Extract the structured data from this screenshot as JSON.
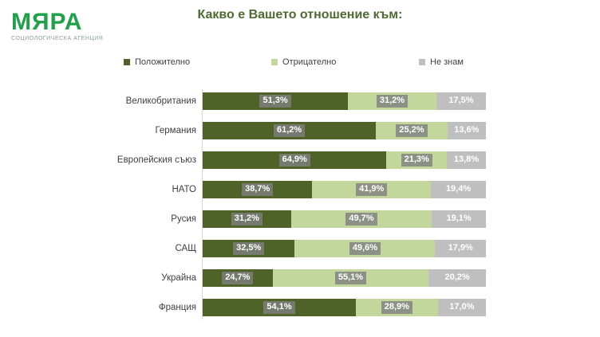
{
  "logo": {
    "name": "МЯРА",
    "subtitle": "СОЦИОЛОГИЧЕСКА АГЕНЦИЯ",
    "color": "#1fa24a"
  },
  "title": "Какво е Вашето отношение към:",
  "colors": {
    "positive": "#4f6228",
    "negative": "#c3d69b",
    "unknown": "#bfbfbf",
    "title": "#4e6b30",
    "label_box": "rgba(127,127,127,0.8)"
  },
  "legend": [
    {
      "label": "Положително",
      "color": "#4f6228"
    },
    {
      "label": "Отрицателно",
      "color": "#c3d69b"
    },
    {
      "label": "Не знам",
      "color": "#bfbfbf"
    }
  ],
  "chart_data": {
    "type": "bar",
    "orientation": "horizontal-stacked",
    "title": "Какво е Вашето отношение към:",
    "xlim": [
      0,
      100
    ],
    "grid": false,
    "legend_position": "top",
    "categories": [
      "Великобритания",
      "Германия",
      "Европейския съюз",
      "НАТО",
      "Русия",
      "САЩ",
      "Украйна",
      "Франция"
    ],
    "series": [
      {
        "name": "Положително",
        "color": "#4f6228",
        "values": [
          51.3,
          61.2,
          64.9,
          38.7,
          31.2,
          32.5,
          24.7,
          54.1
        ]
      },
      {
        "name": "Отрицателно",
        "color": "#c3d69b",
        "values": [
          31.2,
          25.2,
          21.3,
          41.9,
          49.7,
          49.6,
          55.1,
          28.9
        ]
      },
      {
        "name": "Не знам",
        "color": "#bfbfbf",
        "values": [
          17.5,
          13.6,
          13.8,
          19.4,
          19.1,
          17.9,
          20.2,
          17.0
        ]
      }
    ],
    "value_labels": [
      [
        "51,3%",
        "31,2%",
        "17,5%"
      ],
      [
        "61,2%",
        "25,2%",
        "13,6%"
      ],
      [
        "64,9%",
        "21,3%",
        "13,8%"
      ],
      [
        "38,7%",
        "41,9%",
        "19,4%"
      ],
      [
        "31,2%",
        "49,7%",
        "19,1%"
      ],
      [
        "32,5%",
        "49,6%",
        "17,9%"
      ],
      [
        "24,7%",
        "55,1%",
        "20,2%"
      ],
      [
        "54,1%",
        "28,9%",
        "17,0%"
      ]
    ]
  }
}
